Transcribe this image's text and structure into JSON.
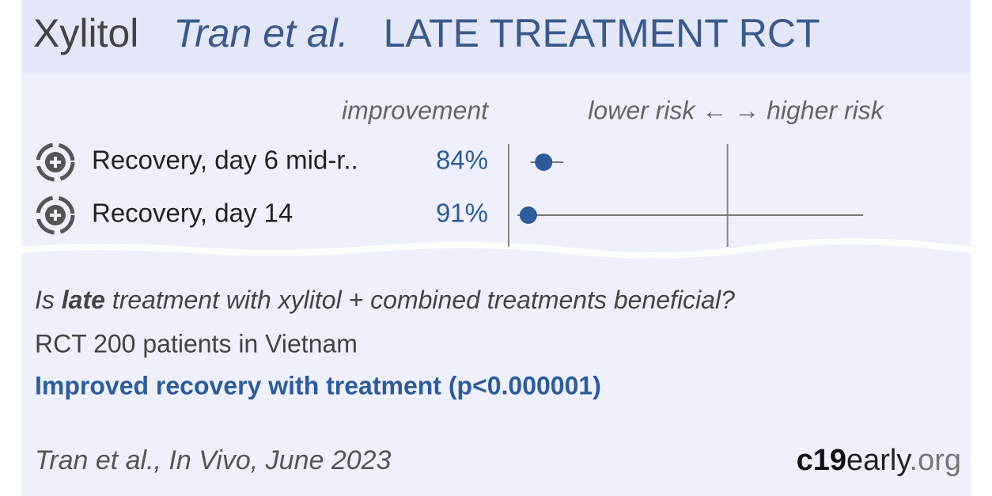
{
  "header": {
    "drug": "Xylitol",
    "authors": "Tran et al.",
    "trial": "LATE TREATMENT RCT"
  },
  "chart_data": {
    "type": "forest",
    "column_header": "improvement",
    "axis_label": "lower risk ← → higher risk",
    "categories": [
      "Recovery, day 6 mid-r..",
      "Recovery, day 14"
    ],
    "values": [
      84,
      91
    ],
    "value_labels": [
      "84%",
      "91%"
    ],
    "risk_ratio": [
      0.16,
      0.09
    ],
    "ci_low": [
      0.1,
      0.04
    ],
    "ci_high": [
      0.25,
      1.62
    ],
    "xlim": [
      0,
      1.8
    ],
    "reference": 1,
    "color": "#2e5c9a"
  },
  "summary": {
    "question": [
      "Is ",
      "late",
      " treatment with xylitol + combined treatments beneficial?"
    ],
    "study": "RCT 200 patients in Vietnam",
    "result": "Improved recovery with treatment (p<0.000001)"
  },
  "footer": {
    "citation": "Tran et al., In Vivo, June 2023",
    "logo": [
      "c19",
      "early",
      ".org"
    ]
  }
}
